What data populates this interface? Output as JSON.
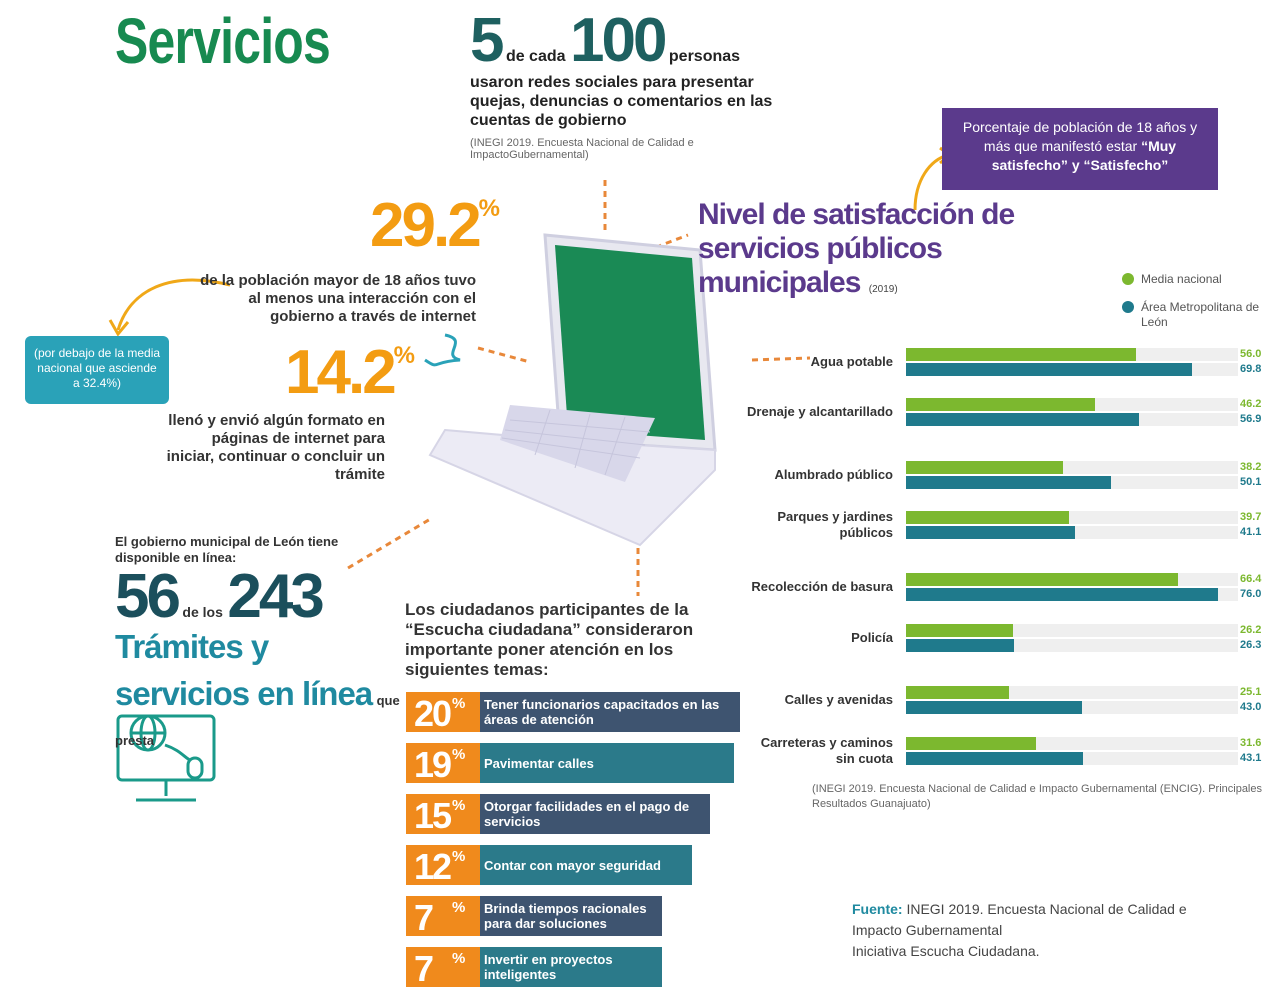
{
  "header": {
    "title": "Servicios"
  },
  "redes": {
    "count": 5,
    "connector": "de cada",
    "total": 100,
    "unit": "personas",
    "text": "usaron redes sociales para presentar quejas, denuncias o comentarios en las cuentas de gobierno",
    "source": "(INEGI 2019. Encuesta Nacional de Calidad e ImpactoGubernamental)"
  },
  "internet": {
    "value": 29.2,
    "unit": "%",
    "text": "de la población mayor de 18 años tuvo al menos una interacción con el gobierno a través de internet",
    "note": "(por debajo de la media nacional que asciende a 32.4%)"
  },
  "formatos": {
    "value": 14.2,
    "unit": "%",
    "text": "llenó y envió algún formato en páginas de internet para iniciar, continuar o concluir un trámite"
  },
  "tramites": {
    "intro": "El gobierno municipal de León tiene disponible en línea:",
    "value": 56,
    "connector": "de los",
    "total": 243,
    "label": "Trámites y servicios en línea",
    "suffix": "que presta"
  },
  "escucha": {
    "intro": "Los ciudadanos participantes de la “Escucha ciudadana” consideraron importante poner atención en los siguientes temas:",
    "unit": "%",
    "items": [
      {
        "value": 20,
        "label": "Tener funcionarios capacitados en las áreas de atención"
      },
      {
        "value": 19,
        "label": "Pavimentar calles"
      },
      {
        "value": 15,
        "label": "Otorgar facilidades en el pago de servicios"
      },
      {
        "value": 12,
        "label": "Contar con mayor seguridad"
      },
      {
        "value": 7,
        "label": "Brinda tiempos racionales para dar soluciones"
      },
      {
        "value": 7,
        "label": "Invertir en proyectos inteligentes"
      }
    ]
  },
  "chart_data": {
    "type": "bar",
    "orientation": "horizontal",
    "title": "Nivel de satisfacción de servicios públicos municipales",
    "title_note": "(2019)",
    "note": "Porcentaje de población de 18 años y más que manifestó estar",
    "note_emphasis": "“Muy satisfecho” y “Satisfecho”",
    "categories": [
      "Agua potable",
      "Drenaje y alcantarillado",
      "Alumbrado público",
      "Parques y jardines públicos",
      "Recolección de basura",
      "Policía",
      "Calles y avenidas",
      "Carreteras y caminos sin cuota"
    ],
    "series": [
      {
        "name": "Media nacional",
        "color": "#7cb82f",
        "values": [
          56.0,
          46.2,
          38.2,
          39.7,
          66.4,
          26.2,
          25.1,
          31.6
        ],
        "value_labels": [
          "56.0",
          "46.2",
          "38.2",
          "39.7",
          "66.4",
          "26.2",
          "25.1",
          "31.6"
        ]
      },
      {
        "name": "Área Metropolitana de León",
        "color": "#1f7a8c",
        "values": [
          69.8,
          56.9,
          50.1,
          41.1,
          76.0,
          26.3,
          43.0,
          43.1
        ],
        "value_labels": [
          "69.8",
          "56.9",
          "50.1",
          "41.1",
          "76.0",
          "26.3",
          "43.0",
          "43.1"
        ]
      }
    ],
    "source": "(INEGI 2019. Encuesta Nacional de Calidad e Impacto Gubernamental (ENCIG). Principales Resultados Guanajuato)"
  },
  "footer": {
    "label": "Fuente:",
    "lines": [
      "INEGI 2019. Encuesta Nacional de Calidad e Impacto Gubernamental",
      "Iniciativa Escucha Ciudadana."
    ]
  }
}
